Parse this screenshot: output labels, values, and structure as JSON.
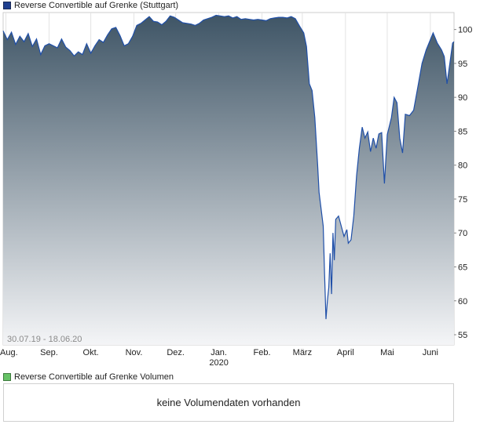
{
  "legend": {
    "price_label": "Reverse Convertible auf Grenke  (Stuttgart)",
    "volume_label": "Reverse Convertible auf Grenke  Volumen"
  },
  "colors": {
    "price_swatch": "#1f3f8f",
    "volume_swatch": "#66c266",
    "line": "#1f4fa8",
    "area_top": "#3f5566",
    "area_bottom": "#f4f5f7"
  },
  "volume": {
    "message": "keine Volumendaten vorhanden"
  },
  "chart_data": {
    "type": "area",
    "date_range_label": "30.07.19 - 18.06.20",
    "x_range": [
      "2019-07-30",
      "2020-06-18"
    ],
    "ylim": [
      53.5,
      102.5
    ],
    "y_ticks": [
      55,
      60,
      65,
      70,
      75,
      80,
      85,
      90,
      95,
      100
    ],
    "y_axis_position": "right",
    "x_ticks": [
      {
        "label": "Aug.",
        "date": "2019-08-01"
      },
      {
        "label": "Sep.",
        "date": "2019-09-01"
      },
      {
        "label": "Okt.",
        "date": "2019-10-01"
      },
      {
        "label": "Nov.",
        "date": "2019-11-01"
      },
      {
        "label": "Dez.",
        "date": "2019-12-01"
      },
      {
        "label": "Jan.",
        "date": "2020-01-01",
        "sublabel": "2020"
      },
      {
        "label": "Feb.",
        "date": "2020-02-01"
      },
      {
        "label": "März",
        "date": "2020-03-01"
      },
      {
        "label": "April",
        "date": "2020-04-01"
      },
      {
        "label": "Mai",
        "date": "2020-05-01"
      },
      {
        "label": "Juni",
        "date": "2020-06-01"
      }
    ],
    "grid": "vertical month lines",
    "series": [
      {
        "points": [
          [
            "2019-07-30",
            99.8
          ],
          [
            "2019-08-02",
            98.5
          ],
          [
            "2019-08-05",
            99.6
          ],
          [
            "2019-08-08",
            97.8
          ],
          [
            "2019-08-11",
            99.0
          ],
          [
            "2019-08-14",
            98.2
          ],
          [
            "2019-08-17",
            99.4
          ],
          [
            "2019-08-20",
            97.5
          ],
          [
            "2019-08-23",
            98.6
          ],
          [
            "2019-08-26",
            96.3
          ],
          [
            "2019-08-29",
            97.6
          ],
          [
            "2019-09-01",
            97.9
          ],
          [
            "2019-09-04",
            97.6
          ],
          [
            "2019-09-07",
            97.3
          ],
          [
            "2019-09-10",
            98.6
          ],
          [
            "2019-09-13",
            97.4
          ],
          [
            "2019-09-16",
            96.9
          ],
          [
            "2019-09-19",
            96.1
          ],
          [
            "2019-09-22",
            96.7
          ],
          [
            "2019-09-25",
            96.3
          ],
          [
            "2019-09-28",
            97.9
          ],
          [
            "2019-10-01",
            96.5
          ],
          [
            "2019-10-04",
            97.6
          ],
          [
            "2019-10-07",
            98.5
          ],
          [
            "2019-10-10",
            98.1
          ],
          [
            "2019-10-13",
            99.2
          ],
          [
            "2019-10-16",
            100.1
          ],
          [
            "2019-10-19",
            100.3
          ],
          [
            "2019-10-22",
            99.1
          ],
          [
            "2019-10-25",
            97.6
          ],
          [
            "2019-10-28",
            97.9
          ],
          [
            "2019-10-31",
            99.0
          ],
          [
            "2019-11-03",
            100.6
          ],
          [
            "2019-11-06",
            100.9
          ],
          [
            "2019-11-09",
            101.4
          ],
          [
            "2019-11-12",
            101.9
          ],
          [
            "2019-11-15",
            101.2
          ],
          [
            "2019-11-18",
            101.1
          ],
          [
            "2019-11-21",
            100.7
          ],
          [
            "2019-11-24",
            101.2
          ],
          [
            "2019-11-27",
            102.0
          ],
          [
            "2019-11-30",
            101.8
          ],
          [
            "2019-12-03",
            101.4
          ],
          [
            "2019-12-06",
            101.0
          ],
          [
            "2019-12-09",
            100.9
          ],
          [
            "2019-12-12",
            100.8
          ],
          [
            "2019-12-15",
            100.6
          ],
          [
            "2019-12-18",
            100.9
          ],
          [
            "2019-12-21",
            101.4
          ],
          [
            "2019-12-24",
            101.6
          ],
          [
            "2019-12-27",
            101.8
          ],
          [
            "2019-12-30",
            102.1
          ],
          [
            "2020-01-02",
            102.0
          ],
          [
            "2020-01-05",
            101.9
          ],
          [
            "2020-01-08",
            102.0
          ],
          [
            "2020-01-11",
            101.7
          ],
          [
            "2020-01-14",
            101.9
          ],
          [
            "2020-01-17",
            101.5
          ],
          [
            "2020-01-20",
            101.6
          ],
          [
            "2020-01-23",
            101.5
          ],
          [
            "2020-01-26",
            101.4
          ],
          [
            "2020-01-29",
            101.5
          ],
          [
            "2020-02-01",
            101.4
          ],
          [
            "2020-02-04",
            101.3
          ],
          [
            "2020-02-07",
            101.6
          ],
          [
            "2020-02-10",
            101.7
          ],
          [
            "2020-02-13",
            101.8
          ],
          [
            "2020-02-16",
            101.8
          ],
          [
            "2020-02-19",
            101.7
          ],
          [
            "2020-02-22",
            101.9
          ],
          [
            "2020-02-25",
            101.6
          ],
          [
            "2020-02-28",
            100.5
          ],
          [
            "2020-03-02",
            99.5
          ],
          [
            "2020-03-04",
            97.5
          ],
          [
            "2020-03-06",
            92.0
          ],
          [
            "2020-03-08",
            91.0
          ],
          [
            "2020-03-10",
            87.0
          ],
          [
            "2020-03-12",
            80.0
          ],
          [
            "2020-03-13",
            76.0
          ],
          [
            "2020-03-16",
            71.0
          ],
          [
            "2020-03-17",
            64.0
          ],
          [
            "2020-03-18",
            57.3
          ],
          [
            "2020-03-19",
            60.0
          ],
          [
            "2020-03-20",
            62.0
          ],
          [
            "2020-03-21",
            67.0
          ],
          [
            "2020-03-22",
            61.0
          ],
          [
            "2020-03-23",
            70.0
          ],
          [
            "2020-03-24",
            66.0
          ],
          [
            "2020-03-25",
            72.0
          ],
          [
            "2020-03-27",
            72.5
          ],
          [
            "2020-03-29",
            71.0
          ],
          [
            "2020-03-31",
            69.5
          ],
          [
            "2020-04-02",
            70.5
          ],
          [
            "2020-04-03",
            68.5
          ],
          [
            "2020-04-05",
            69.0
          ],
          [
            "2020-04-07",
            72.5
          ],
          [
            "2020-04-09",
            78.5
          ],
          [
            "2020-04-11",
            82.5
          ],
          [
            "2020-04-13",
            85.6
          ],
          [
            "2020-04-15",
            84.0
          ],
          [
            "2020-04-17",
            84.9
          ],
          [
            "2020-04-19",
            82.0
          ],
          [
            "2020-04-21",
            84.0
          ],
          [
            "2020-04-23",
            82.5
          ],
          [
            "2020-04-25",
            84.6
          ],
          [
            "2020-04-27",
            84.8
          ],
          [
            "2020-04-29",
            77.3
          ],
          [
            "2020-05-01",
            84.5
          ],
          [
            "2020-05-04",
            87.0
          ],
          [
            "2020-05-06",
            90.0
          ],
          [
            "2020-05-08",
            89.2
          ],
          [
            "2020-05-10",
            84.0
          ],
          [
            "2020-05-12",
            81.8
          ],
          [
            "2020-05-14",
            87.5
          ],
          [
            "2020-05-17",
            87.3
          ],
          [
            "2020-05-20",
            88.1
          ],
          [
            "2020-05-23",
            91.5
          ],
          [
            "2020-05-26",
            95.0
          ],
          [
            "2020-05-29",
            97.0
          ],
          [
            "2020-06-01",
            98.5
          ],
          [
            "2020-06-03",
            99.5
          ],
          [
            "2020-06-06",
            98.0
          ],
          [
            "2020-06-09",
            97.0
          ],
          [
            "2020-06-11",
            96.0
          ],
          [
            "2020-06-13",
            92.0
          ],
          [
            "2020-06-15",
            95.0
          ],
          [
            "2020-06-17",
            98.0
          ],
          [
            "2020-06-18",
            98.2
          ]
        ]
      }
    ]
  }
}
